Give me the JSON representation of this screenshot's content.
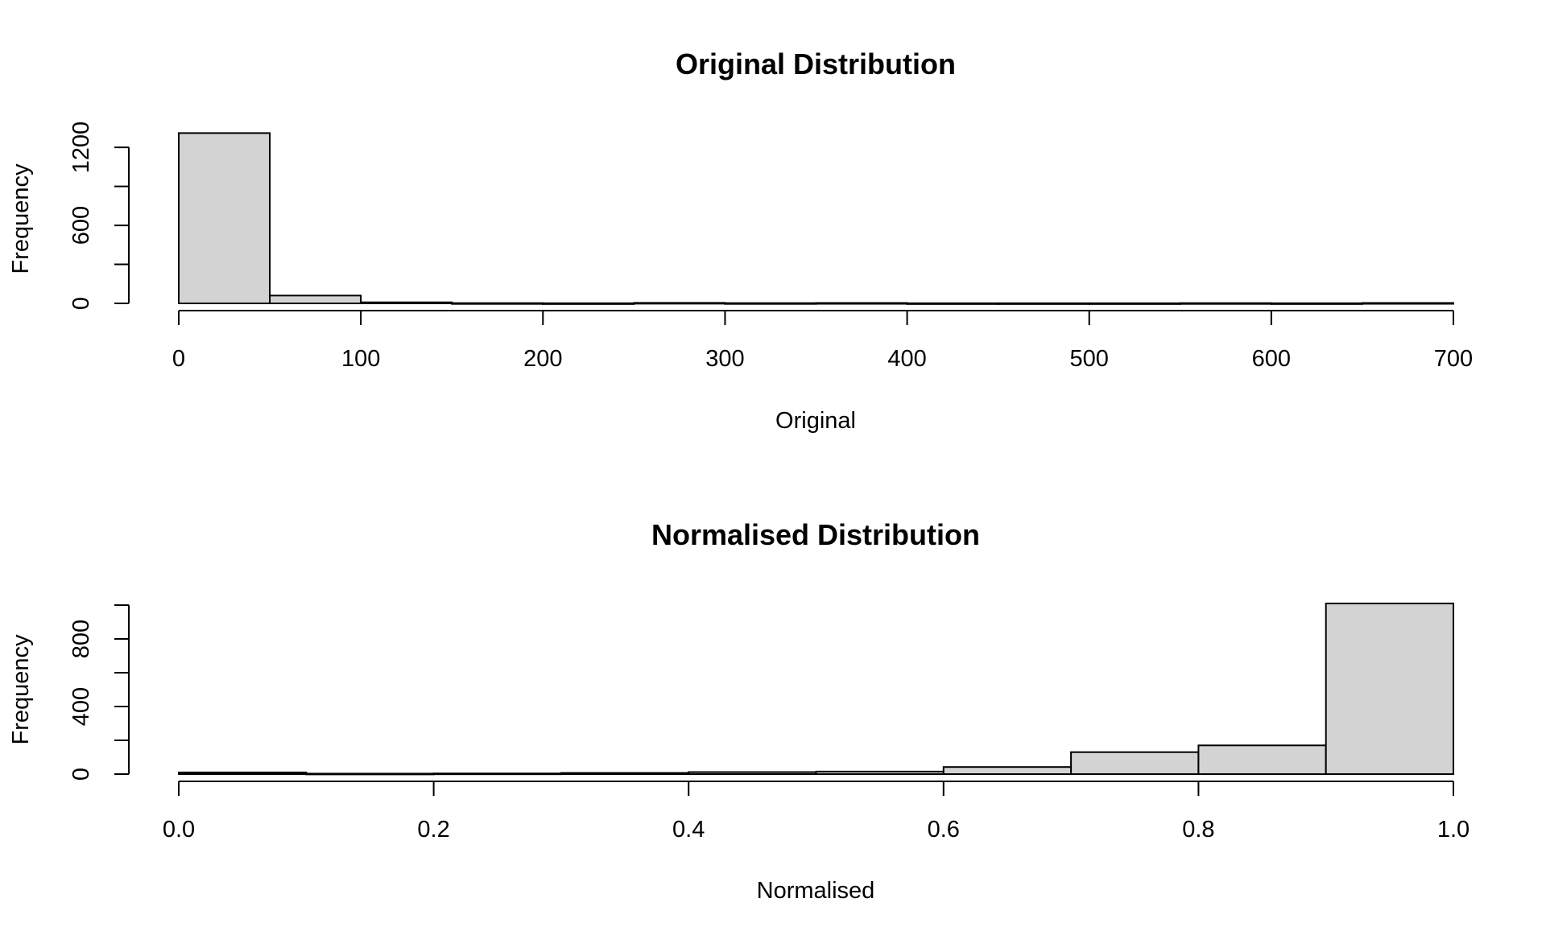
{
  "chart_data": [
    {
      "type": "bar",
      "chart_kind": "histogram",
      "title": "Original Distribution",
      "xlabel": "Original",
      "ylabel": "Frequency",
      "xlim": [
        0,
        700
      ],
      "ylim": [
        0,
        1300
      ],
      "xticks": [
        "0",
        "100",
        "200",
        "300",
        "400",
        "500",
        "600",
        "700"
      ],
      "yticks": [
        "0",
        "600",
        "1200"
      ],
      "bin_width": 50,
      "bin_edges": [
        0,
        50,
        100,
        150,
        200,
        250,
        300,
        350,
        400,
        450,
        500,
        550,
        600,
        650,
        700
      ],
      "values": [
        1310,
        60,
        8,
        2,
        1,
        4,
        2,
        3,
        1,
        1,
        1,
        2,
        1,
        3
      ],
      "grid": false,
      "legend": "none"
    },
    {
      "type": "bar",
      "chart_kind": "histogram",
      "title": "Normalised Distribution",
      "xlabel": "Normalised",
      "ylabel": "Frequency",
      "xlim": [
        0.0,
        1.0
      ],
      "ylim": [
        0,
        1000
      ],
      "xticks": [
        "0.0",
        "0.2",
        "0.4",
        "0.6",
        "0.8",
        "1.0"
      ],
      "yticks": [
        "0",
        "400",
        "800"
      ],
      "bin_width": 0.1,
      "bin_edges": [
        0.0,
        0.1,
        0.2,
        0.3,
        0.4,
        0.5,
        0.6,
        0.7,
        0.8,
        0.9,
        1.0
      ],
      "values": [
        10,
        3,
        4,
        7,
        12,
        15,
        42,
        130,
        170,
        1010
      ],
      "grid": false,
      "legend": "none"
    }
  ]
}
